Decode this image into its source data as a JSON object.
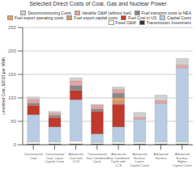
{
  "chart_data": {
    "type": "bar",
    "title": "Selected Direct Costs of Coal, Gas and Nuclear Power",
    "ylabel": "Levelized Cost, $2013 per MWh",
    "categories": [
      "Conventional\nCoal",
      "Conventional\nCoal, Lower\nCapital Costs",
      "Advanced\nCoal with\nCCS",
      "Conventional\nGas Combined\nCycle",
      "Advanced\nGas Combined\nCycle with\nCCS",
      "Advanced\nNuclear,\nLower\nCapital Costs",
      "Advanced\nNuclear",
      "Advanced\nNuclear,\nHigher\nCapital Costs"
    ],
    "series": [
      {
        "name": "Transmission Investment",
        "color": "#333333",
        "values": [
          2,
          2,
          2,
          2,
          2,
          2,
          2,
          2
        ]
      },
      {
        "name": "Fixed O&M",
        "color": "#fffff0",
        "values": [
          4,
          4,
          6,
          3,
          4,
          4,
          4,
          4
        ]
      },
      {
        "name": "Capital Costs",
        "color": "#b8cce4",
        "values": [
          58,
          32,
          88,
          18,
          32,
          48,
          82,
          158
        ]
      },
      {
        "name": "Fuel Cost in US",
        "color": "#c0392b",
        "values": [
          20,
          20,
          20,
          48,
          48,
          0,
          0,
          0
        ]
      },
      {
        "name": "Fuel export capital costs",
        "color": "#d4956a",
        "values": [
          0,
          0,
          0,
          0,
          8,
          0,
          0,
          0
        ]
      },
      {
        "name": "Fuel export operating costs",
        "color": "#e8a060",
        "values": [
          0,
          0,
          0,
          0,
          6,
          0,
          0,
          0
        ]
      },
      {
        "name": "Fuel transport costs to NEA",
        "color": "#888888",
        "values": [
          5,
          5,
          10,
          5,
          10,
          0,
          0,
          0
        ]
      },
      {
        "name": "Variable O&M (without fuel)",
        "color": "#e8a0a0",
        "values": [
          8,
          5,
          10,
          8,
          8,
          5,
          6,
          6
        ]
      },
      {
        "name": "Decommissioning Costs",
        "color": "#d0d0d0",
        "values": [
          5,
          3,
          7,
          2,
          5,
          10,
          12,
          14
        ]
      }
    ],
    "ylim": [
      0,
      250
    ],
    "yticks": [
      0,
      50,
      100,
      150,
      200,
      250
    ],
    "grid": true,
    "stacked": true,
    "legend": "upper right"
  }
}
